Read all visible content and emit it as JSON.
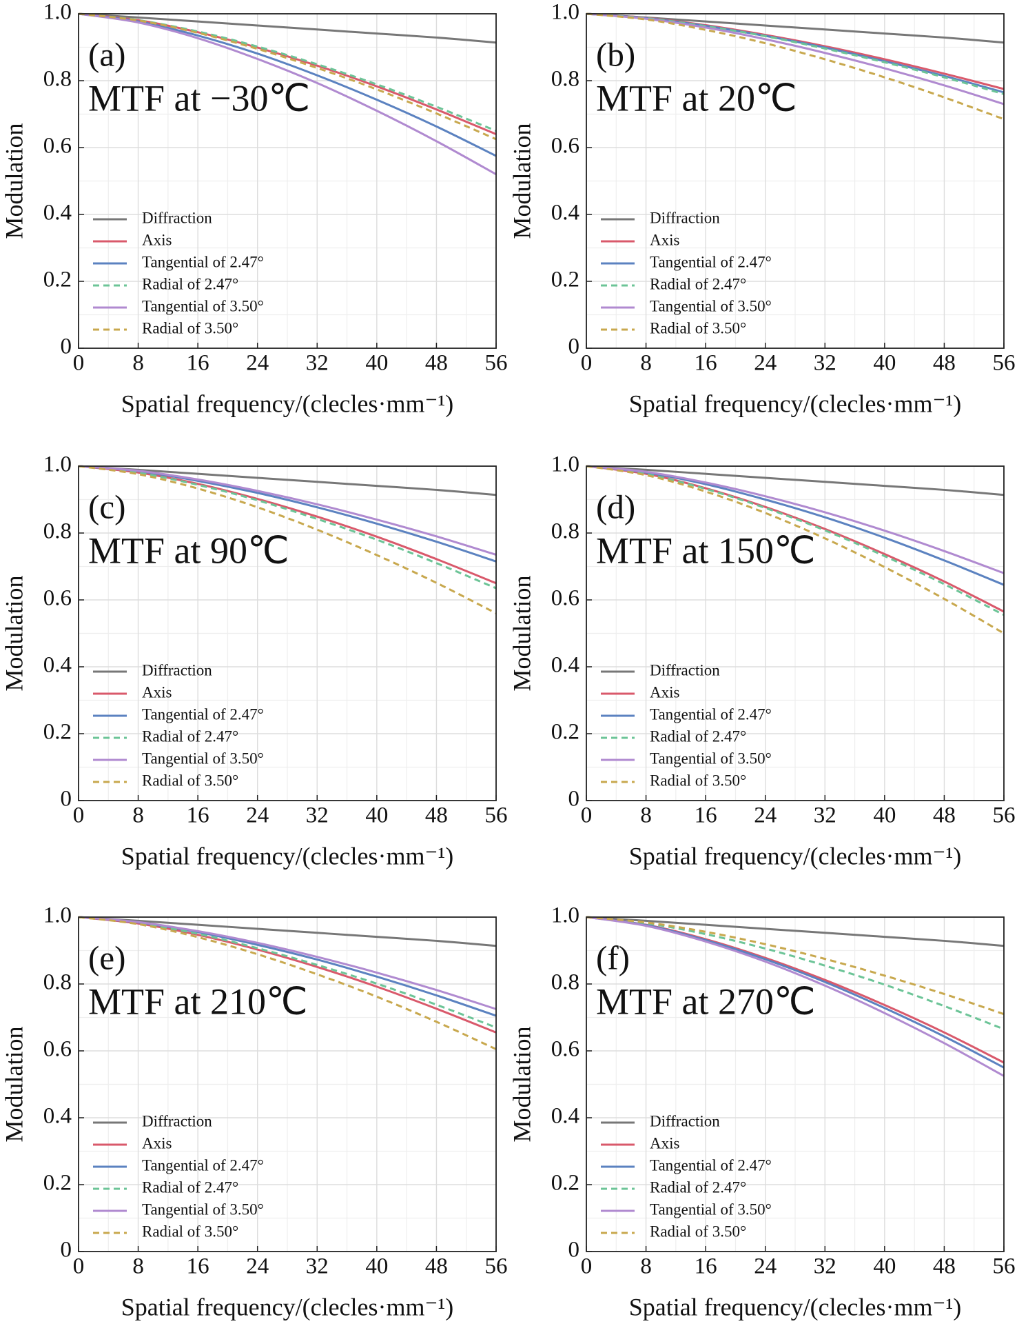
{
  "chart_data": [
    {
      "type": "line",
      "label": "(a)",
      "title": "MTF at −30℃",
      "x_label": "Spatial frequency/(clecles·mm⁻¹)",
      "y_label": "Modulation",
      "x": [
        0,
        8,
        16,
        24,
        32,
        40,
        48,
        56
      ],
      "xlim": [
        0,
        56
      ],
      "xticks": [
        0,
        8,
        16,
        24,
        32,
        40,
        48,
        56
      ],
      "ylim": [
        0,
        1
      ],
      "yticks": [
        0,
        0.2,
        0.4,
        0.6,
        0.8,
        {
          "value": 1,
          "label": "1.0"
        }
      ],
      "grid": true,
      "legend": "lower left",
      "series": [
        {
          "name": "Diffraction",
          "color": "#777777",
          "style": "solid",
          "values": [
            1,
            0.989,
            0.977,
            0.965,
            0.953,
            0.941,
            0.929,
            0.914
          ]
        },
        {
          "name": "Axis",
          "color": "#d9596b",
          "style": "solid",
          "values": [
            1,
            0.981,
            0.945,
            0.899,
            0.845,
            0.783,
            0.714,
            0.64
          ]
        },
        {
          "name": "Tangential of 2.47°",
          "color": "#5b82c0",
          "style": "solid",
          "values": [
            1,
            0.977,
            0.935,
            0.881,
            0.816,
            0.743,
            0.663,
            0.575
          ]
        },
        {
          "name": "Radial of 2.47°",
          "color": "#6cc497",
          "style": "dashed",
          "values": [
            1,
            0.981,
            0.947,
            0.902,
            0.849,
            0.789,
            0.722,
            0.65
          ]
        },
        {
          "name": "Tangential of 3.50°",
          "color": "#b08ad0",
          "style": "solid",
          "values": [
            1,
            0.974,
            0.927,
            0.865,
            0.793,
            0.71,
            0.619,
            0.52
          ]
        },
        {
          "name": "Radial of 3.50°",
          "color": "#c8a84e",
          "style": "dashed",
          "values": [
            1,
            0.98,
            0.943,
            0.895,
            0.838,
            0.774,
            0.702,
            0.625
          ]
        }
      ]
    },
    {
      "type": "line",
      "label": "(b)",
      "title": "MTF at 20℃",
      "x_label": "Spatial frequency/(clecles·mm⁻¹)",
      "y_label": "Modulation",
      "x": [
        0,
        8,
        16,
        24,
        32,
        40,
        48,
        56
      ],
      "xlim": [
        0,
        56
      ],
      "xticks": [
        0,
        8,
        16,
        24,
        32,
        40,
        48,
        56
      ],
      "ylim": [
        0,
        1
      ],
      "yticks": [
        0,
        0.2,
        0.4,
        0.6,
        0.8,
        {
          "value": 1,
          "label": "1.0"
        }
      ],
      "grid": true,
      "legend": "lower left",
      "series": [
        {
          "name": "Diffraction",
          "color": "#777777",
          "style": "solid",
          "values": [
            1,
            0.989,
            0.977,
            0.965,
            0.953,
            0.941,
            0.929,
            0.914
          ]
        },
        {
          "name": "Axis",
          "color": "#d9596b",
          "style": "solid",
          "values": [
            1,
            0.988,
            0.966,
            0.937,
            0.903,
            0.864,
            0.821,
            0.775
          ]
        },
        {
          "name": "Tangential of 2.47°",
          "color": "#5b82c0",
          "style": "solid",
          "values": [
            1,
            0.987,
            0.964,
            0.934,
            0.899,
            0.858,
            0.814,
            0.765
          ]
        },
        {
          "name": "Radial of 2.47°",
          "color": "#6cc497",
          "style": "dashed",
          "values": [
            1,
            0.987,
            0.963,
            0.933,
            0.896,
            0.855,
            0.81,
            0.76
          ]
        },
        {
          "name": "Tangential of 3.50°",
          "color": "#b08ad0",
          "style": "solid",
          "values": [
            1,
            0.985,
            0.959,
            0.924,
            0.883,
            0.837,
            0.786,
            0.73
          ]
        },
        {
          "name": "Radial of 3.50°",
          "color": "#c8a84e",
          "style": "dashed",
          "values": [
            1,
            0.983,
            0.952,
            0.912,
            0.864,
            0.81,
            0.75,
            0.685
          ]
        }
      ]
    },
    {
      "type": "line",
      "label": "(c)",
      "title": "MTF at 90℃",
      "x_label": "Spatial frequency/(clecles·mm⁻¹)",
      "y_label": "Modulation",
      "x": [
        0,
        8,
        16,
        24,
        32,
        40,
        48,
        56
      ],
      "xlim": [
        0,
        56
      ],
      "xticks": [
        0,
        8,
        16,
        24,
        32,
        40,
        48,
        56
      ],
      "ylim": [
        0,
        1
      ],
      "yticks": [
        0,
        0.2,
        0.4,
        0.6,
        0.8,
        {
          "value": 1,
          "label": "1.0"
        }
      ],
      "grid": true,
      "legend": "lower left",
      "series": [
        {
          "name": "Diffraction",
          "color": "#777777",
          "style": "solid",
          "values": [
            1,
            0.989,
            0.977,
            0.965,
            0.953,
            0.941,
            0.929,
            0.914
          ]
        },
        {
          "name": "Axis",
          "color": "#d9596b",
          "style": "solid",
          "values": [
            1,
            0.981,
            0.947,
            0.902,
            0.849,
            0.789,
            0.722,
            0.65
          ]
        },
        {
          "name": "Tangential of 2.47°",
          "color": "#5b82c0",
          "style": "solid",
          "values": [
            1,
            0.985,
            0.956,
            0.92,
            0.877,
            0.828,
            0.774,
            0.715
          ]
        },
        {
          "name": "Radial of 2.47°",
          "color": "#6cc497",
          "style": "dashed",
          "values": [
            1,
            0.98,
            0.944,
            0.898,
            0.842,
            0.78,
            0.71,
            0.635
          ]
        },
        {
          "name": "Tangential of 3.50°",
          "color": "#b08ad0",
          "style": "solid",
          "values": [
            1,
            0.986,
            0.96,
            0.926,
            0.886,
            0.84,
            0.79,
            0.735
          ]
        },
        {
          "name": "Radial of 3.50°",
          "color": "#c8a84e",
          "style": "dashed",
          "values": [
            1,
            0.976,
            0.933,
            0.877,
            0.81,
            0.734,
            0.651,
            0.56
          ]
        }
      ]
    },
    {
      "type": "line",
      "label": "(d)",
      "title": "MTF at 150℃",
      "x_label": "Spatial frequency/(clecles·mm⁻¹)",
      "y_label": "Modulation",
      "x": [
        0,
        8,
        16,
        24,
        32,
        40,
        48,
        56
      ],
      "xlim": [
        0,
        56
      ],
      "xticks": [
        0,
        8,
        16,
        24,
        32,
        40,
        48,
        56
      ],
      "ylim": [
        0,
        1
      ],
      "yticks": [
        0,
        0.2,
        0.4,
        0.6,
        0.8,
        {
          "value": 1,
          "label": "1.0"
        }
      ],
      "grid": true,
      "legend": "lower left",
      "series": [
        {
          "name": "Diffraction",
          "color": "#777777",
          "style": "solid",
          "values": [
            1,
            0.989,
            0.977,
            0.965,
            0.953,
            0.941,
            0.929,
            0.914
          ]
        },
        {
          "name": "Axis",
          "color": "#d9596b",
          "style": "solid",
          "values": [
            1,
            0.977,
            0.934,
            0.878,
            0.812,
            0.737,
            0.655,
            0.565
          ]
        },
        {
          "name": "Tangential of 2.47°",
          "color": "#5b82c0",
          "style": "solid",
          "values": [
            1,
            0.981,
            0.946,
            0.9,
            0.847,
            0.786,
            0.718,
            0.645
          ]
        },
        {
          "name": "Radial of 2.47°",
          "color": "#6cc497",
          "style": "dashed",
          "values": [
            1,
            0.976,
            0.932,
            0.875,
            0.808,
            0.731,
            0.647,
            0.555
          ]
        },
        {
          "name": "Tangential of 3.50°",
          "color": "#b08ad0",
          "style": "solid",
          "values": [
            1,
            0.983,
            0.951,
            0.91,
            0.862,
            0.807,
            0.746,
            0.68
          ]
        },
        {
          "name": "Radial of 3.50°",
          "color": "#c8a84e",
          "style": "dashed",
          "values": [
            1,
            0.973,
            0.924,
            0.86,
            0.784,
            0.698,
            0.603,
            0.5
          ]
        }
      ]
    },
    {
      "type": "line",
      "label": "(e)",
      "title": "MTF at 210℃",
      "x_label": "Spatial frequency/(clecles·mm⁻¹)",
      "y_label": "Modulation",
      "x": [
        0,
        8,
        16,
        24,
        32,
        40,
        48,
        56
      ],
      "xlim": [
        0,
        56
      ],
      "xticks": [
        0,
        8,
        16,
        24,
        32,
        40,
        48,
        56
      ],
      "ylim": [
        0,
        1
      ],
      "yticks": [
        0,
        0.2,
        0.4,
        0.6,
        0.8,
        {
          "value": 1,
          "label": "1.0"
        }
      ],
      "grid": true,
      "legend": "lower left",
      "series": [
        {
          "name": "Diffraction",
          "color": "#777777",
          "style": "solid",
          "values": [
            1,
            0.989,
            0.977,
            0.965,
            0.953,
            0.941,
            0.929,
            0.914
          ]
        },
        {
          "name": "Axis",
          "color": "#d9596b",
          "style": "solid",
          "values": [
            1,
            0.981,
            0.947,
            0.903,
            0.851,
            0.792,
            0.726,
            0.655
          ]
        },
        {
          "name": "Tangential of 2.47°",
          "color": "#5b82c0",
          "style": "solid",
          "values": [
            1,
            0.984,
            0.955,
            0.917,
            0.873,
            0.822,
            0.766,
            0.705
          ]
        },
        {
          "name": "Radial of 2.47°",
          "color": "#6cc497",
          "style": "dashed",
          "values": [
            1,
            0.982,
            0.95,
            0.907,
            0.857,
            0.801,
            0.738,
            0.67
          ]
        },
        {
          "name": "Tangential of 3.50°",
          "color": "#b08ad0",
          "style": "solid",
          "values": [
            1,
            0.985,
            0.958,
            0.923,
            0.881,
            0.834,
            0.782,
            0.725
          ]
        },
        {
          "name": "Radial of 3.50°",
          "color": "#c8a84e",
          "style": "dashed",
          "values": [
            1,
            0.979,
            0.94,
            0.889,
            0.829,
            0.762,
            0.687,
            0.605
          ]
        }
      ]
    },
    {
      "type": "line",
      "label": "(f)",
      "title": "MTF at 270℃",
      "x_label": "Spatial frequency/(clecles·mm⁻¹)",
      "y_label": "Modulation",
      "x": [
        0,
        8,
        16,
        24,
        32,
        40,
        48,
        56
      ],
      "xlim": [
        0,
        56
      ],
      "xticks": [
        0,
        8,
        16,
        24,
        32,
        40,
        48,
        56
      ],
      "ylim": [
        0,
        1
      ],
      "yticks": [
        0,
        0.2,
        0.4,
        0.6,
        0.8,
        {
          "value": 1,
          "label": "1.0"
        }
      ],
      "grid": true,
      "legend": "lower left",
      "series": [
        {
          "name": "Diffraction",
          "color": "#777777",
          "style": "solid",
          "values": [
            1,
            0.989,
            0.977,
            0.965,
            0.953,
            0.941,
            0.929,
            0.914
          ]
        },
        {
          "name": "Axis",
          "color": "#d9596b",
          "style": "solid",
          "values": [
            1,
            0.977,
            0.934,
            0.878,
            0.812,
            0.737,
            0.655,
            0.565
          ]
        },
        {
          "name": "Tangential of 2.47°",
          "color": "#5b82c0",
          "style": "solid",
          "values": [
            1,
            0.976,
            0.931,
            0.874,
            0.806,
            0.728,
            0.643,
            0.55
          ]
        },
        {
          "name": "Radial of 2.47°",
          "color": "#6cc497",
          "style": "dashed",
          "values": [
            1,
            0.982,
            0.949,
            0.906,
            0.855,
            0.798,
            0.734,
            0.665
          ]
        },
        {
          "name": "Tangential of 3.50°",
          "color": "#b08ad0",
          "style": "solid",
          "values": [
            1,
            0.974,
            0.927,
            0.867,
            0.795,
            0.713,
            0.623,
            0.525
          ]
        },
        {
          "name": "Radial of 3.50°",
          "color": "#c8a84e",
          "style": "dashed",
          "values": [
            1,
            0.984,
            0.956,
            0.919,
            0.875,
            0.825,
            0.77,
            0.71
          ]
        }
      ]
    }
  ]
}
